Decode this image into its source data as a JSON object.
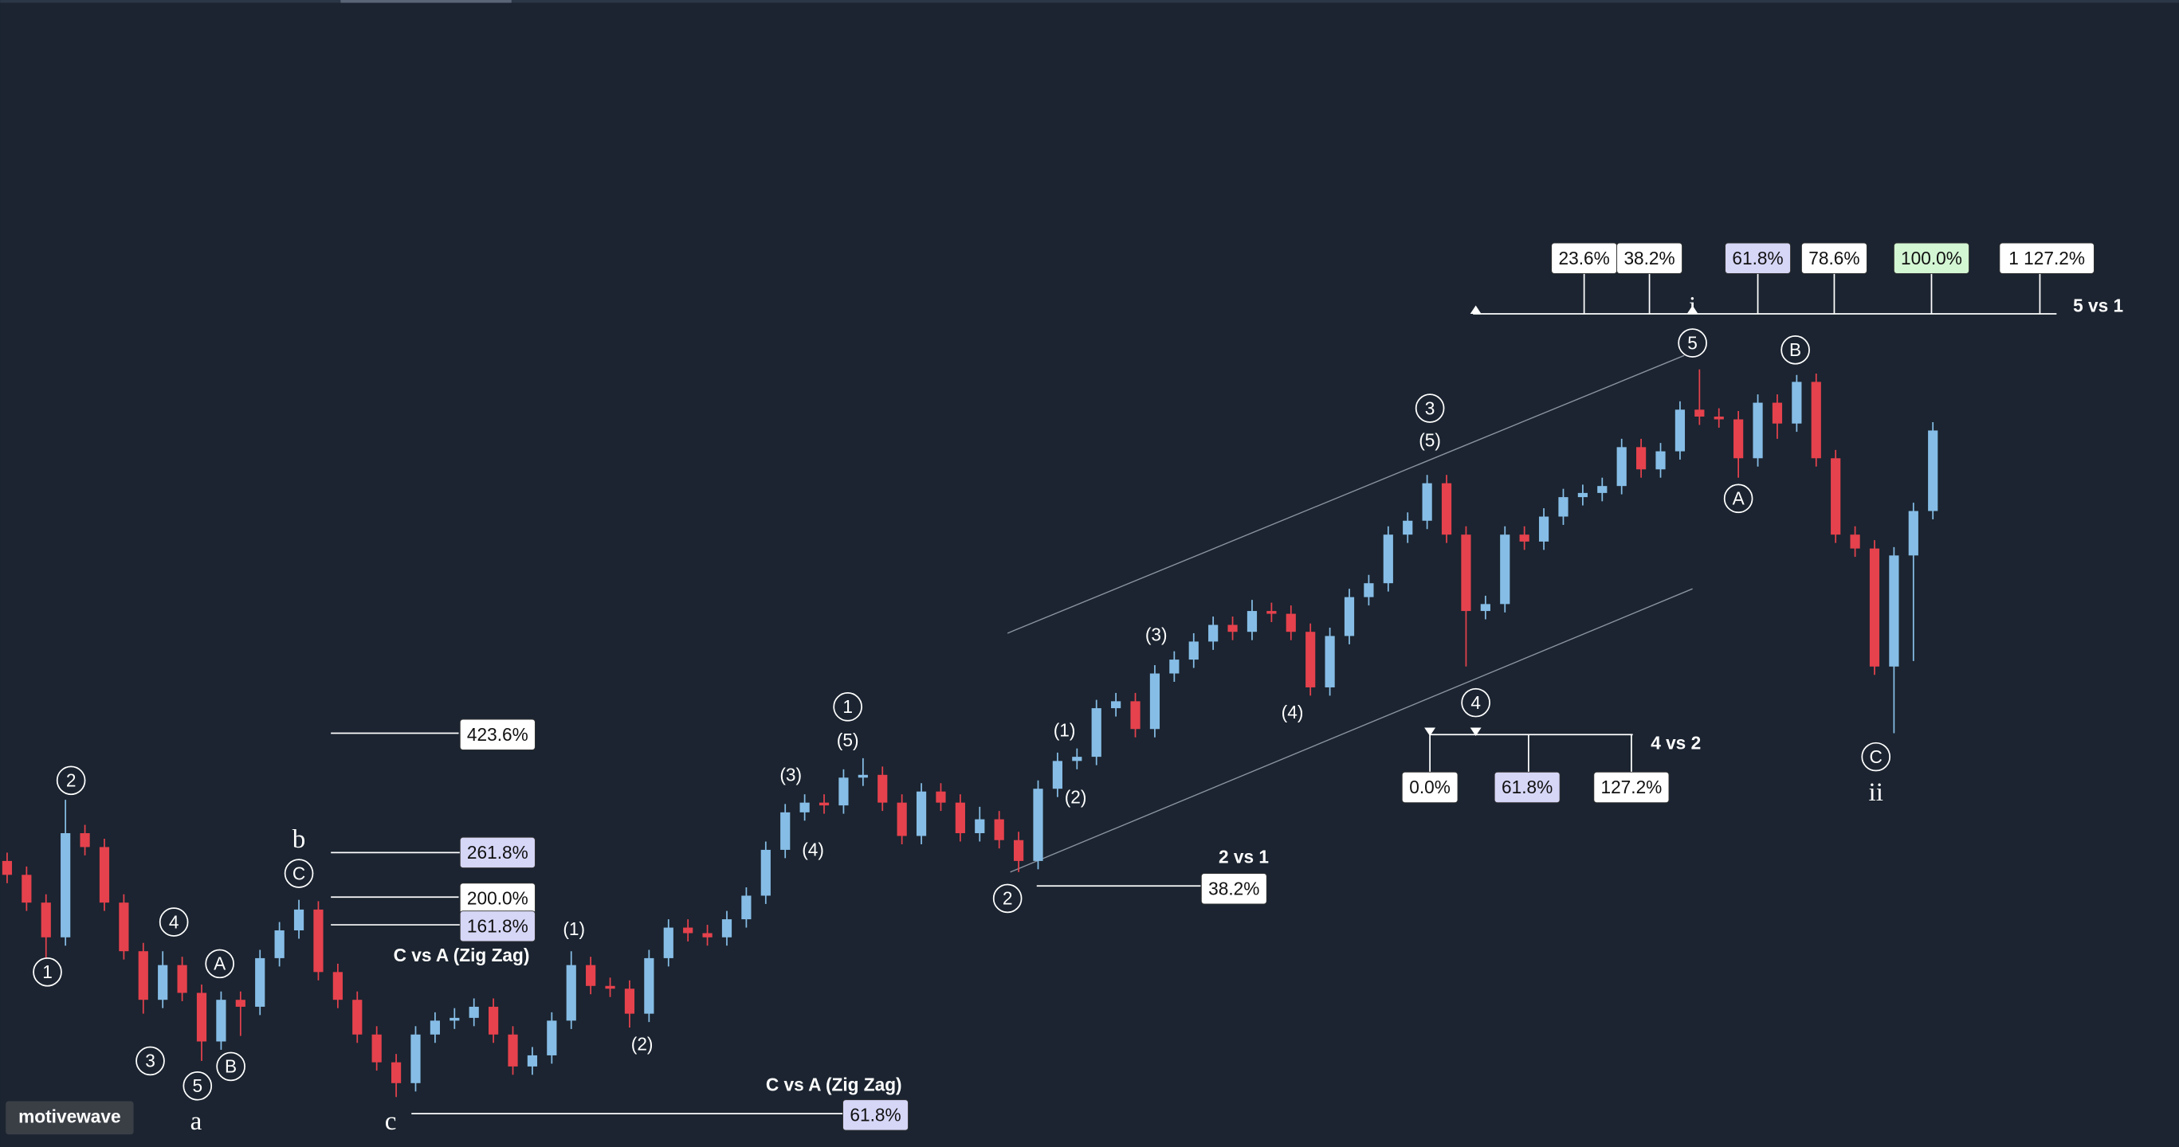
{
  "chart_data": {
    "type": "candlestick",
    "up_color": "#86bde6",
    "down_color": "#e5424d",
    "ylim": [
      0,
      826
    ],
    "candles": [
      [
        206,
        212,
        190,
        196
      ],
      [
        196,
        202,
        170,
        176
      ],
      [
        176,
        182,
        136,
        151
      ],
      [
        151,
        250,
        145,
        226
      ],
      [
        226,
        232,
        210,
        216
      ],
      [
        216,
        222,
        170,
        176
      ],
      [
        176,
        182,
        135,
        141
      ],
      [
        141,
        147,
        96,
        106
      ],
      [
        106,
        141,
        100,
        131
      ],
      [
        131,
        137,
        105,
        111
      ],
      [
        111,
        117,
        62,
        76
      ],
      [
        76,
        112,
        70,
        106
      ],
      [
        106,
        112,
        80,
        101
      ],
      [
        101,
        142,
        95,
        136
      ],
      [
        136,
        162,
        130,
        156
      ],
      [
        156,
        178,
        150,
        171
      ],
      [
        171,
        177,
        120,
        126
      ],
      [
        126,
        132,
        100,
        106
      ],
      [
        106,
        112,
        75,
        81
      ],
      [
        81,
        87,
        55,
        61
      ],
      [
        61,
        67,
        36,
        46
      ],
      [
        46,
        87,
        40,
        81
      ],
      [
        81,
        97,
        75,
        91
      ],
      [
        91,
        100,
        85,
        93
      ],
      [
        93,
        107,
        87,
        101
      ],
      [
        101,
        107,
        75,
        81
      ],
      [
        81,
        87,
        52,
        58
      ],
      [
        58,
        72,
        52,
        66
      ],
      [
        66,
        97,
        60,
        91
      ],
      [
        91,
        141,
        85,
        131
      ],
      [
        131,
        137,
        110,
        116
      ],
      [
        116,
        122,
        108,
        114
      ],
      [
        114,
        120,
        86,
        96
      ],
      [
        96,
        142,
        90,
        136
      ],
      [
        136,
        164,
        130,
        158
      ],
      [
        158,
        164,
        148,
        154
      ],
      [
        154,
        160,
        145,
        151
      ],
      [
        151,
        170,
        145,
        164
      ],
      [
        164,
        187,
        158,
        181
      ],
      [
        181,
        220,
        175,
        214
      ],
      [
        214,
        247,
        208,
        241
      ],
      [
        241,
        254,
        235,
        248
      ],
      [
        248,
        254,
        240,
        246
      ],
      [
        246,
        272,
        240,
        266
      ],
      [
        266,
        280,
        260,
        268
      ],
      [
        268,
        274,
        242,
        248
      ],
      [
        248,
        254,
        218,
        224
      ],
      [
        224,
        262,
        218,
        256
      ],
      [
        256,
        262,
        242,
        248
      ],
      [
        248,
        254,
        220,
        226
      ],
      [
        226,
        245,
        220,
        236
      ],
      [
        236,
        242,
        215,
        221
      ],
      [
        221,
        227,
        198,
        206
      ],
      [
        206,
        264,
        200,
        258
      ],
      [
        258,
        284,
        252,
        278
      ],
      [
        278,
        287,
        272,
        281
      ],
      [
        281,
        322,
        275,
        316
      ],
      [
        316,
        327,
        310,
        321
      ],
      [
        321,
        327,
        295,
        301
      ],
      [
        301,
        347,
        295,
        341
      ],
      [
        341,
        357,
        335,
        351
      ],
      [
        351,
        370,
        345,
        364
      ],
      [
        364,
        382,
        358,
        376
      ],
      [
        376,
        382,
        365,
        371
      ],
      [
        371,
        394,
        365,
        386
      ],
      [
        386,
        392,
        378,
        384
      ],
      [
        384,
        390,
        365,
        371
      ],
      [
        371,
        377,
        325,
        331
      ],
      [
        331,
        374,
        325,
        368
      ],
      [
        368,
        402,
        362,
        396
      ],
      [
        396,
        412,
        390,
        406
      ],
      [
        406,
        447,
        400,
        441
      ],
      [
        441,
        457,
        435,
        451
      ],
      [
        451,
        484,
        445,
        478
      ],
      [
        478,
        484,
        435,
        441
      ],
      [
        441,
        447,
        346,
        386
      ],
      [
        386,
        397,
        380,
        391
      ],
      [
        391,
        447,
        385,
        441
      ],
      [
        441,
        447,
        430,
        436
      ],
      [
        436,
        460,
        430,
        454
      ],
      [
        454,
        474,
        448,
        468
      ],
      [
        468,
        477,
        462,
        471
      ],
      [
        471,
        482,
        465,
        476
      ],
      [
        476,
        510,
        470,
        504
      ],
      [
        504,
        510,
        482,
        488
      ],
      [
        488,
        507,
        482,
        501
      ],
      [
        501,
        537,
        495,
        531
      ],
      [
        531,
        560,
        520,
        526
      ],
      [
        526,
        532,
        518,
        524
      ],
      [
        524,
        530,
        482,
        496
      ],
      [
        496,
        542,
        490,
        536
      ],
      [
        536,
        542,
        510,
        521
      ],
      [
        521,
        556,
        515,
        551
      ],
      [
        551,
        557,
        490,
        496
      ],
      [
        496,
        502,
        435,
        441
      ],
      [
        441,
        447,
        425,
        431
      ],
      [
        431,
        437,
        340,
        346
      ],
      [
        346,
        432,
        298,
        426
      ],
      [
        426,
        464,
        350,
        458
      ],
      [
        458,
        522,
        452,
        516
      ]
    ],
    "wave_labels": [
      "2",
      "1",
      "4",
      "3",
      "5",
      "A",
      "B",
      "C",
      "1",
      "2",
      "3",
      "4",
      "5",
      "B",
      "A",
      "C",
      "b",
      "a",
      "c",
      "ii",
      "i",
      "(1)",
      "(2)",
      "(3)",
      "(4)",
      "(5)",
      "(1)",
      "(2)",
      "(3)",
      "(4)",
      "(5)"
    ],
    "fibs": [
      {
        "title": "5 vs 1",
        "levels": [
          "23.6%",
          "38.2%",
          "61.8%",
          "78.6%",
          "100.0%",
          "1 127.2%"
        ]
      },
      {
        "title": "4 vs 2",
        "levels": [
          "0.0%",
          "61.8%",
          "127.2%"
        ]
      },
      {
        "title": "2 vs 1",
        "levels": [
          "38.2%"
        ]
      },
      {
        "title": "C vs A (Zig Zag)",
        "levels": [
          "423.6%",
          "261.8%",
          "200.0%",
          "161.8%"
        ]
      },
      {
        "title": "C vs A (Zig Zag)",
        "levels": [
          "61.8%"
        ]
      }
    ],
    "watermark": "motivewave"
  }
}
